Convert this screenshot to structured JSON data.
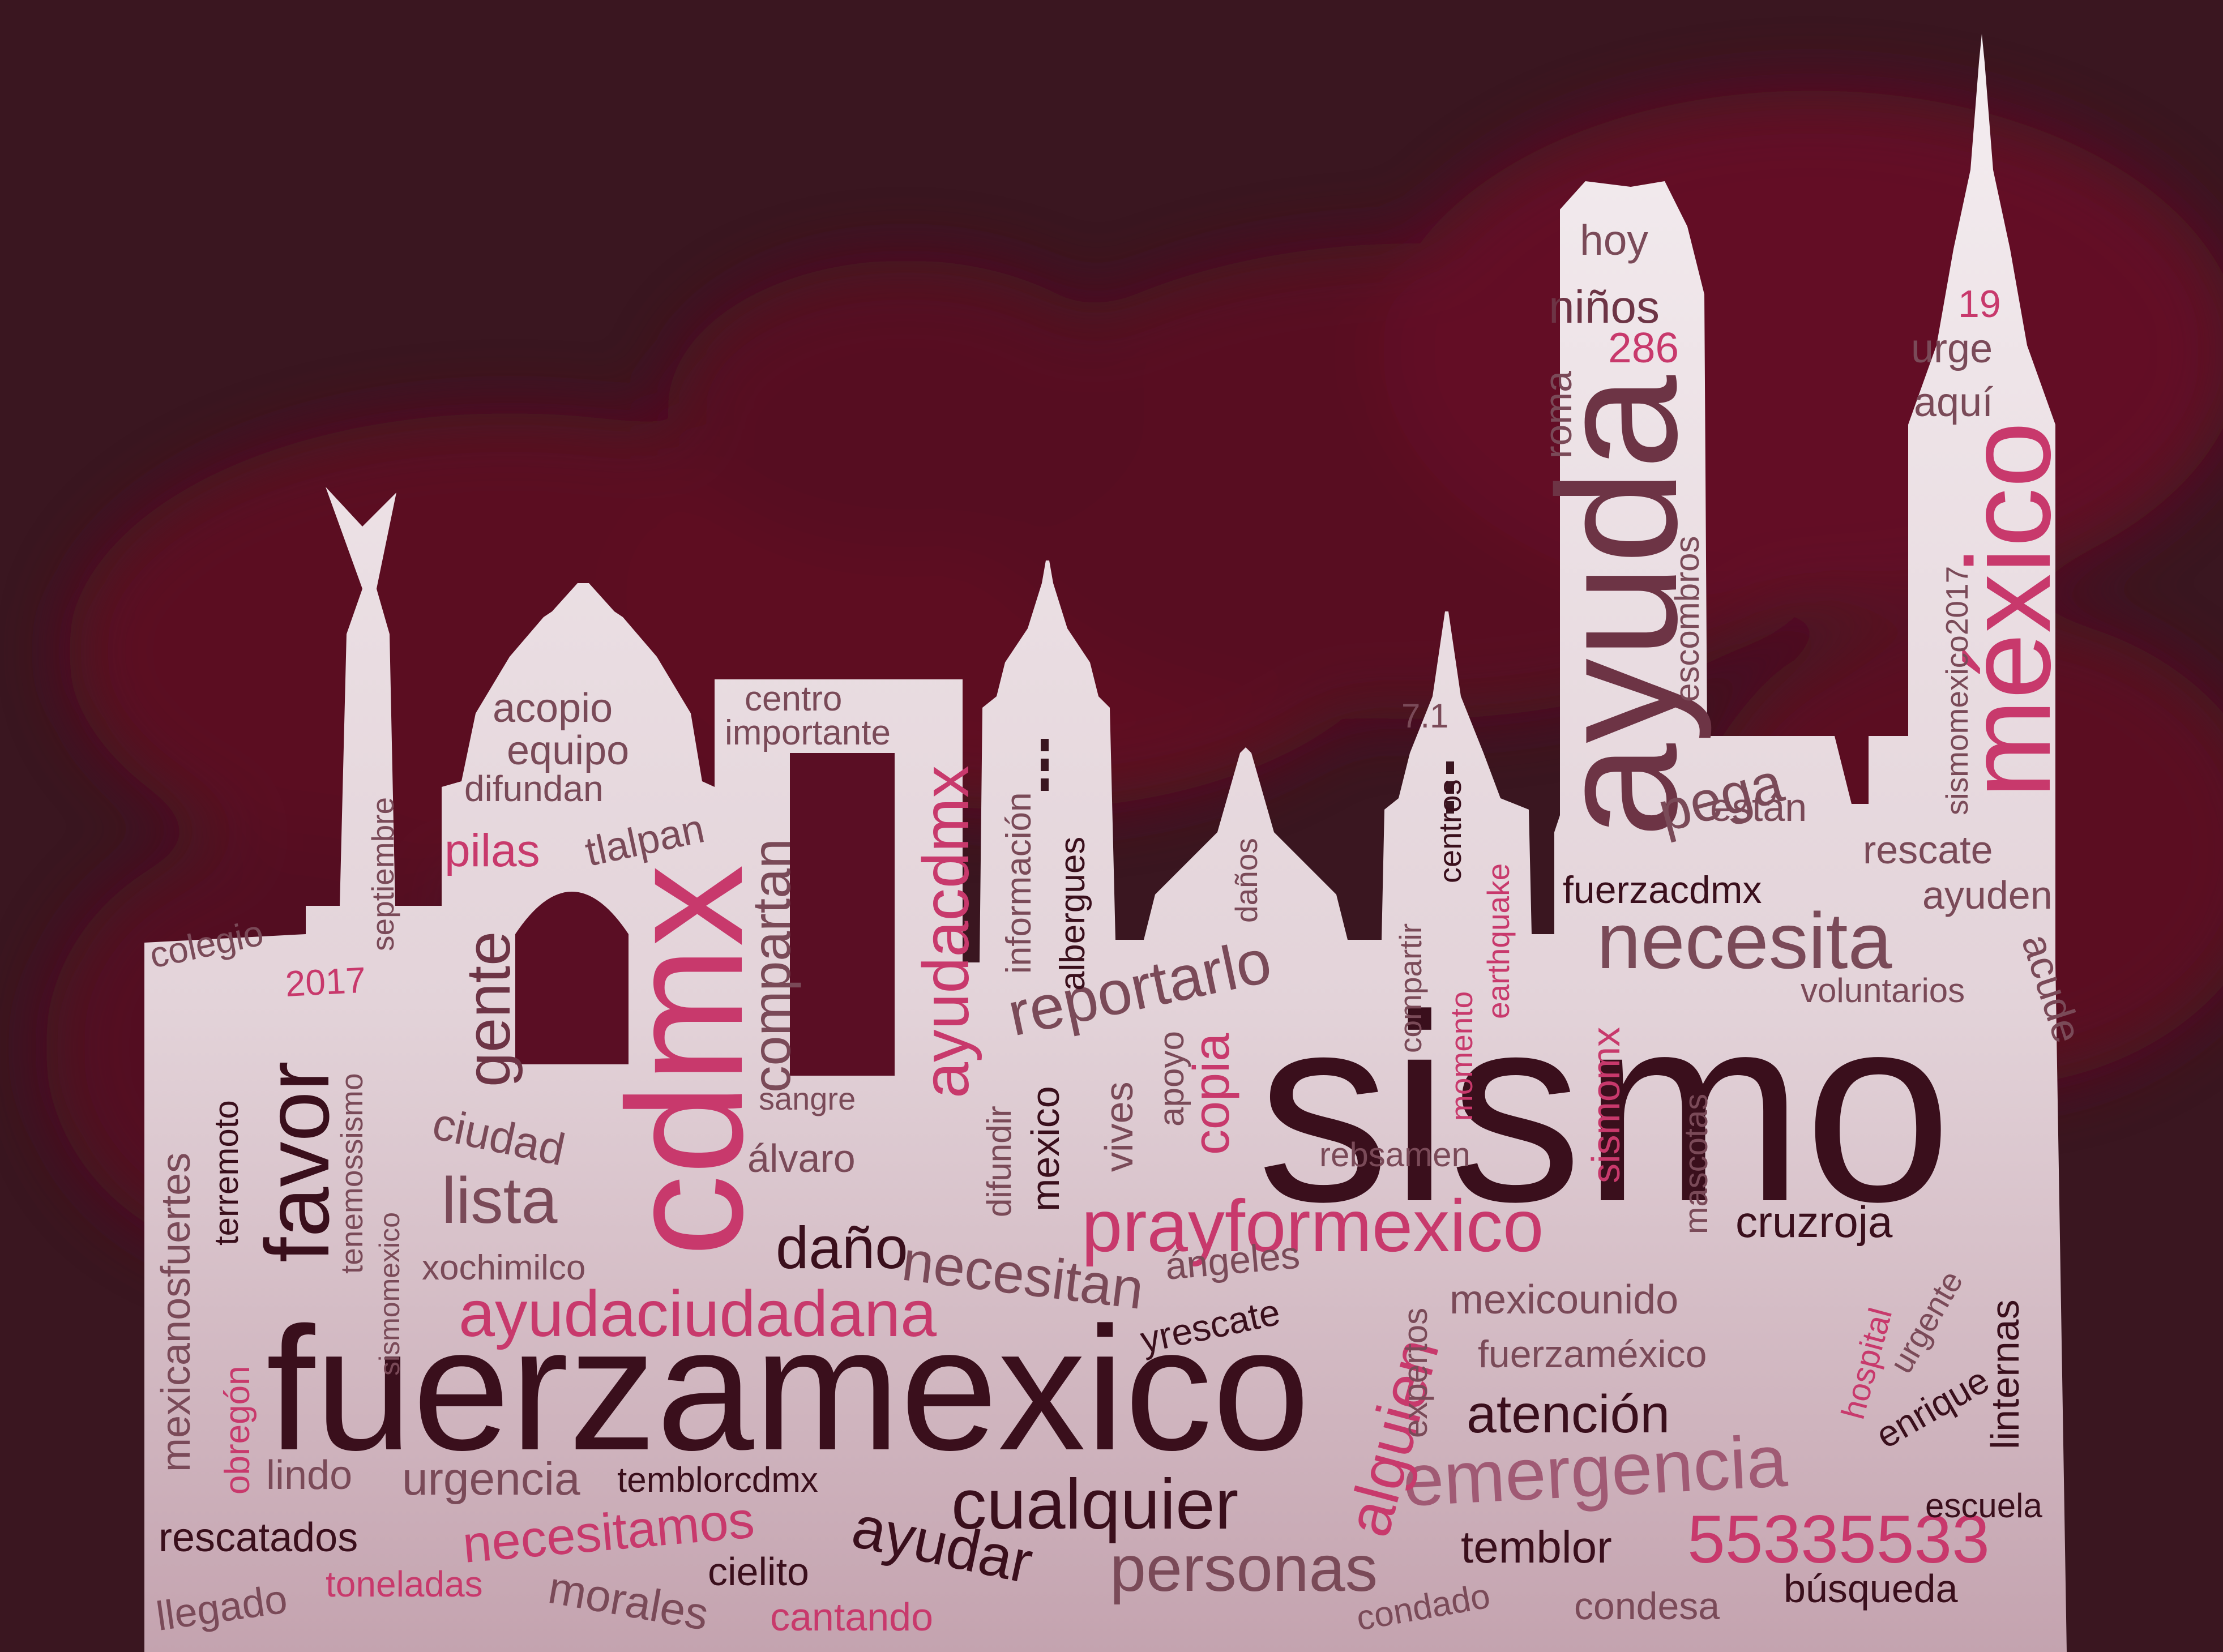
{
  "palette": {
    "background": "#3a1620",
    "smoke": "#6a0a25",
    "silhouette_top": "#f2eaee",
    "silhouette_bottom": "#c7a7b2",
    "window_dark": "#5a0e24"
  },
  "words": [
    {
      "key": "sismo",
      "text": "sismo"
    },
    {
      "key": "fuerzamexico",
      "text": "fuerzamexico"
    },
    {
      "key": "ayuda",
      "text": "ayuda"
    },
    {
      "key": "cdmx",
      "text": "cdmx"
    },
    {
      "key": "mexico_acc",
      "text": "méxico"
    },
    {
      "key": "necesita",
      "text": "necesita"
    },
    {
      "key": "prayformexico",
      "text": "prayformexico"
    },
    {
      "key": "emergencia",
      "text": "emergencia"
    },
    {
      "key": "ayudaciudadana",
      "text": "ayudaciudadana"
    },
    {
      "key": "favor",
      "text": "favor"
    },
    {
      "key": "ayudacdmx",
      "text": "ayudacdmx"
    },
    {
      "key": "cualquier",
      "text": "cualquier"
    },
    {
      "key": "personas",
      "text": "personas"
    },
    {
      "key": "n55335533",
      "text": "55335533"
    },
    {
      "key": "alguien",
      "text": "alguien"
    },
    {
      "key": "gente",
      "text": "gente"
    },
    {
      "key": "lista",
      "text": "lista"
    },
    {
      "key": "reportarlo",
      "text": "reportarlo"
    },
    {
      "key": "dano",
      "text": "daño"
    },
    {
      "key": "necesitan",
      "text": "necesitan"
    },
    {
      "key": "compartan",
      "text": "compartan"
    },
    {
      "key": "atencion",
      "text": "atención"
    },
    {
      "key": "ayudar",
      "text": "ayudar"
    },
    {
      "key": "necesitamos",
      "text": "necesitamos"
    },
    {
      "key": "copia",
      "text": "copia"
    },
    {
      "key": "pega",
      "text": "pega"
    },
    {
      "key": "ninos",
      "text": "niños"
    },
    {
      "key": "hoy",
      "text": "hoy"
    },
    {
      "key": "n286",
      "text": "286"
    },
    {
      "key": "n19",
      "text": "19"
    },
    {
      "key": "urge",
      "text": "urge"
    },
    {
      "key": "aqui",
      "text": "aquí"
    },
    {
      "key": "roma",
      "text": "roma"
    },
    {
      "key": "escombros",
      "text": "escombros"
    },
    {
      "key": "sismomexico2017",
      "text": "sismomexico2017"
    },
    {
      "key": "estan",
      "text": "están"
    },
    {
      "key": "rescate",
      "text": "rescate"
    },
    {
      "key": "ayuden",
      "text": "ayuden"
    },
    {
      "key": "fuerzacdmx",
      "text": "fuerzacdmx"
    },
    {
      "key": "acude",
      "text": "acude"
    },
    {
      "key": "voluntarios",
      "text": "voluntarios"
    },
    {
      "key": "acopio",
      "text": "acopio"
    },
    {
      "key": "equipo",
      "text": "equipo"
    },
    {
      "key": "difundan",
      "text": "difundan"
    },
    {
      "key": "pilas",
      "text": "pilas"
    },
    {
      "key": "tlalpan",
      "text": "tlalpan"
    },
    {
      "key": "centro",
      "text": "centro"
    },
    {
      "key": "importante",
      "text": "importante"
    },
    {
      "key": "informacion",
      "text": "información"
    },
    {
      "key": "albergues",
      "text": "albergues"
    },
    {
      "key": "danos",
      "text": "daños"
    },
    {
      "key": "n71",
      "text": "7.1"
    },
    {
      "key": "centros",
      "text": "centros"
    },
    {
      "key": "earthquake",
      "text": "earthquake"
    },
    {
      "key": "compartir",
      "text": "compartir"
    },
    {
      "key": "momento",
      "text": "momento"
    },
    {
      "key": "septiembre",
      "text": "septiembre"
    },
    {
      "key": "colegio",
      "text": "colegio"
    },
    {
      "key": "n2017",
      "text": "2017"
    },
    {
      "key": "mexicanosfuertes",
      "text": "mexicanosfuertes"
    },
    {
      "key": "terremoto",
      "text": "terremoto"
    },
    {
      "key": "tenemossismo",
      "text": "tenemossismo"
    },
    {
      "key": "sismomexico",
      "text": "sismomexico"
    },
    {
      "key": "ciudad",
      "text": "ciudad"
    },
    {
      "key": "xochimilco",
      "text": "xochimilco"
    },
    {
      "key": "sangre",
      "text": "sangre"
    },
    {
      "key": "alvaro",
      "text": "álvaro"
    },
    {
      "key": "difundir",
      "text": "difundir"
    },
    {
      "key": "mexico",
      "text": "mexico"
    },
    {
      "key": "vives",
      "text": "vives"
    },
    {
      "key": "apoyo",
      "text": "apoyo"
    },
    {
      "key": "rebsamen",
      "text": "rebsamen"
    },
    {
      "key": "sismomx",
      "text": "sismomx"
    },
    {
      "key": "mascotas",
      "text": "mascotas"
    },
    {
      "key": "cruzroja",
      "text": "cruzroja"
    },
    {
      "key": "angeles",
      "text": "ángeles"
    },
    {
      "key": "yrescate",
      "text": "yrescate"
    },
    {
      "key": "expertos",
      "text": "expertos"
    },
    {
      "key": "mexicounido",
      "text": "mexicounido"
    },
    {
      "key": "fuerzamexico_acc",
      "text": "fuerzaméxico"
    },
    {
      "key": "hospital",
      "text": "hospital"
    },
    {
      "key": "urgente",
      "text": "urgente"
    },
    {
      "key": "enrique",
      "text": "enrique"
    },
    {
      "key": "linternas",
      "text": "linternas"
    },
    {
      "key": "obregon",
      "text": "obregón"
    },
    {
      "key": "lindo",
      "text": "lindo"
    },
    {
      "key": "urgencia",
      "text": "urgencia"
    },
    {
      "key": "temblorcdmx",
      "text": "temblorcdmx"
    },
    {
      "key": "rescatados",
      "text": "rescatados"
    },
    {
      "key": "llegado",
      "text": "llegado"
    },
    {
      "key": "toneladas",
      "text": "toneladas"
    },
    {
      "key": "morales",
      "text": "morales"
    },
    {
      "key": "cielito",
      "text": "cielito"
    },
    {
      "key": "cantando",
      "text": "cantando"
    },
    {
      "key": "temblor",
      "text": "temblor"
    },
    {
      "key": "condado",
      "text": "condado"
    },
    {
      "key": "condesa",
      "text": "condesa"
    },
    {
      "key": "busqueda",
      "text": "búsqueda"
    },
    {
      "key": "escuela",
      "text": "escuela"
    }
  ]
}
